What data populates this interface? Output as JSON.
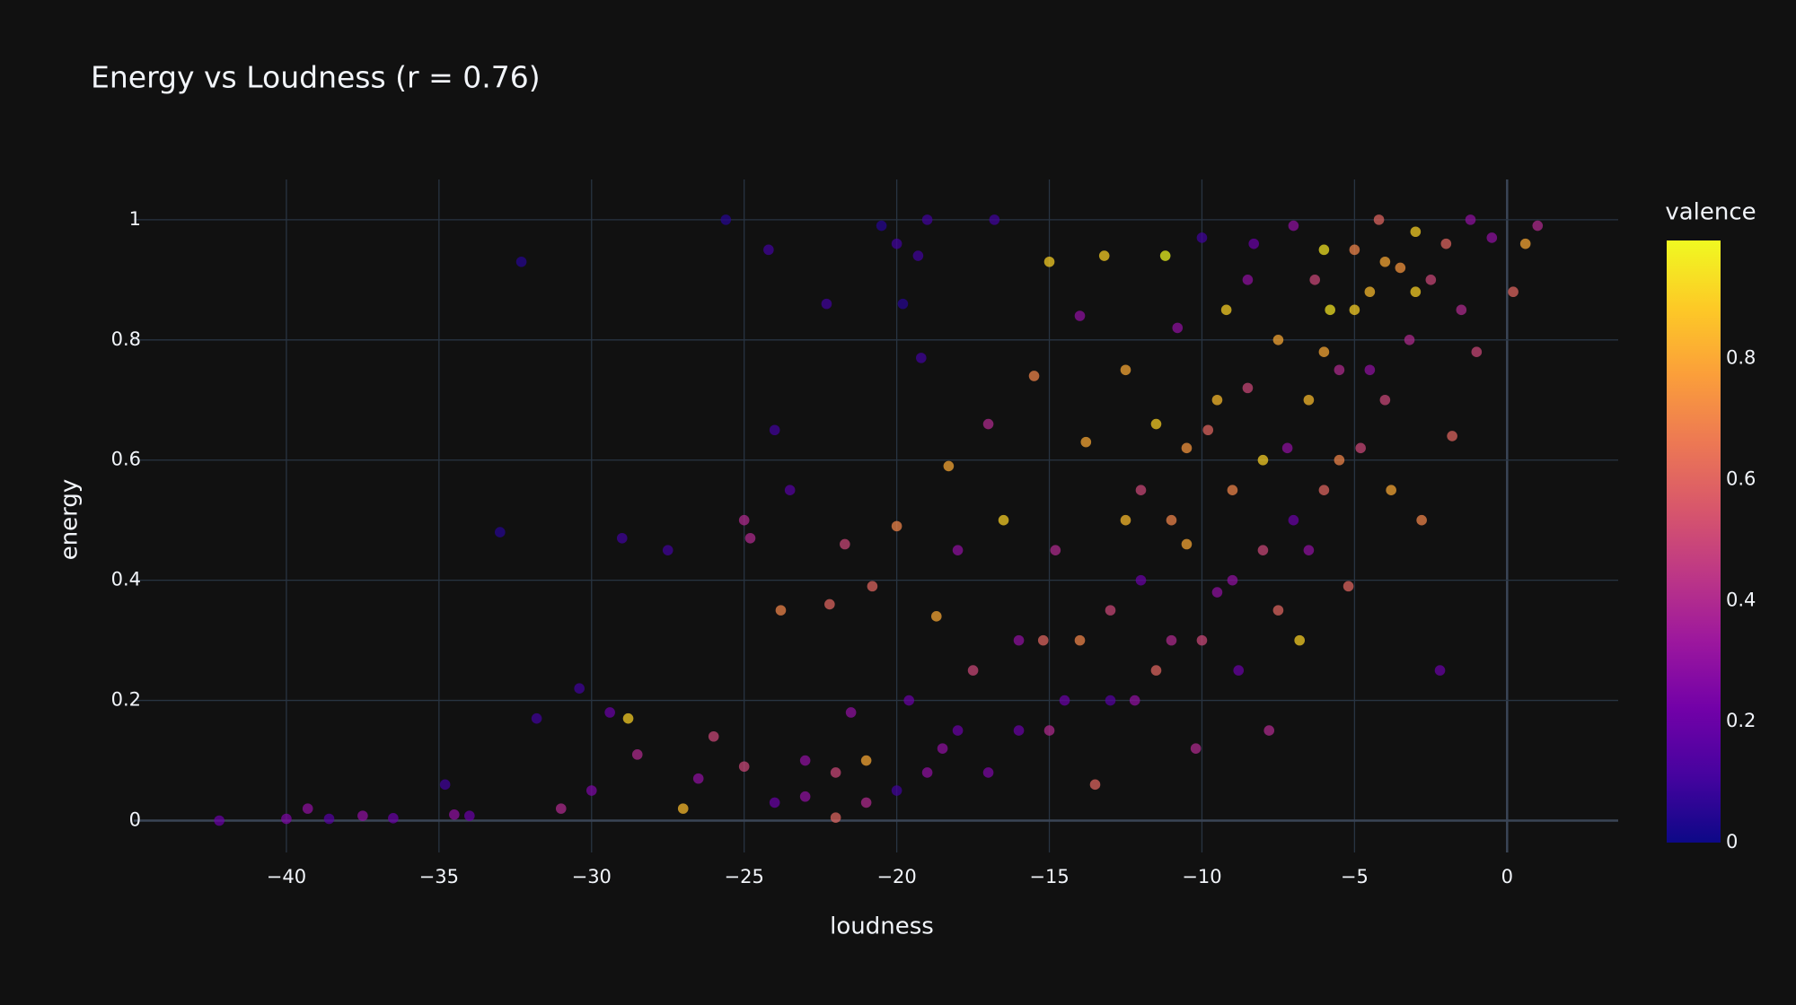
{
  "chart_data": {
    "type": "scatter",
    "title": "Energy vs Loudness (r = 0.76)",
    "x_label": "loudness",
    "y_label": "energy",
    "colorbar_title": "valence",
    "xlim": [
      -45,
      3.64
    ],
    "ylim": [
      -0.053,
      1.067
    ],
    "xticks": [
      {
        "value": -40,
        "label": "−40"
      },
      {
        "value": -35,
        "label": "−35"
      },
      {
        "value": -30,
        "label": "−30"
      },
      {
        "value": -25,
        "label": "−25"
      },
      {
        "value": -20,
        "label": "−20"
      },
      {
        "value": -15,
        "label": "−15"
      },
      {
        "value": -10,
        "label": "−10"
      },
      {
        "value": -5,
        "label": "−5"
      },
      0
    ],
    "yticks": [
      0,
      0.2,
      0.4,
      0.6,
      0.8,
      1
    ],
    "clim": [
      0,
      0.995
    ],
    "cticks": [
      0,
      0.2,
      0.4,
      0.6,
      0.8
    ],
    "colorscale": [
      "#0d0887",
      "#46039f",
      "#7201a8",
      "#9c179e",
      "#bd3786",
      "#d8576b",
      "#ed7953",
      "#fb9f3a",
      "#fdca26",
      "#f0f921"
    ],
    "grid": true,
    "x": [
      -42.2,
      -40,
      -39.3,
      -38.6,
      -37.5,
      -36.5,
      -34.8,
      -34.5,
      -34,
      -33,
      -32.3,
      -31.8,
      -31,
      -30.4,
      -30,
      -29.4,
      -29,
      -28.8,
      -28.5,
      -27.5,
      -27,
      -26.5,
      -26,
      -25.6,
      -25,
      -25,
      -24.8,
      -24.2,
      -24,
      -23.8,
      -23.5,
      -23,
      -22.3,
      -22.2,
      -22,
      -21.7,
      -21.5,
      -21,
      -20.8,
      -20.5,
      -20,
      -20,
      -19.8,
      -19.6,
      -19.3,
      -19.2,
      -19,
      -18.7,
      -18.5,
      -18.3,
      -18,
      -17.5,
      -17,
      -16.8,
      -16.5,
      -16,
      -15.5,
      -15.2,
      -15,
      -14.8,
      -14.5,
      -14,
      -13.8,
      -13.5,
      -13.2,
      -13,
      -12.5,
      -12.2,
      -12,
      -11.5,
      -11.2,
      -11,
      -10.8,
      -10.5,
      -10.2,
      -10,
      -9.8,
      -9.5,
      -9.2,
      -9,
      -8.8,
      -8.5,
      -8.3,
      -8,
      -7.8,
      -7.5,
      -7.2,
      -7,
      -6.8,
      -6.5,
      -6.3,
      -6,
      -5.8,
      -5.5,
      -5.2,
      -5,
      -4.8,
      -4.5,
      -4.2,
      -4,
      -3.8,
      -3.5,
      -3.2,
      -3,
      -2.8,
      -2.5,
      -2.2,
      -2,
      -1.8,
      -1.5,
      -1.2,
      -1,
      -0.5,
      0.2,
      0.6,
      1,
      -9,
      -8,
      -7,
      -6,
      -5,
      -4.5,
      -11,
      -12,
      -10,
      -9.5,
      -8.5,
      -7.5,
      -13,
      -14,
      -15,
      -16,
      -17,
      -18,
      -19,
      -20,
      -21,
      -22,
      -23,
      -24,
      -6,
      -3,
      -4,
      -5.5,
      -6.5,
      -11.5,
      -10.5,
      -12.5
    ],
    "y": [
      0.0,
      0.003,
      0.02,
      0.003,
      0.008,
      0.004,
      0.06,
      0.01,
      0.008,
      0.48,
      0.93,
      0.17,
      0.02,
      0.22,
      0.05,
      0.18,
      0.47,
      0.17,
      0.11,
      0.45,
      0.02,
      0.07,
      0.14,
      1.0,
      0.09,
      0.5,
      0.47,
      0.95,
      0.65,
      0.35,
      0.55,
      0.04,
      0.86,
      0.36,
      0.005,
      0.46,
      0.18,
      0.1,
      0.39,
      0.99,
      0.96,
      0.49,
      0.86,
      0.2,
      0.94,
      0.77,
      1.0,
      0.34,
      0.12,
      0.59,
      0.45,
      0.25,
      0.66,
      1.0,
      0.5,
      0.15,
      0.74,
      0.3,
      0.93,
      0.45,
      0.2,
      0.84,
      0.63,
      0.06,
      0.94,
      0.35,
      0.75,
      0.2,
      0.55,
      0.66,
      0.94,
      0.3,
      0.82,
      0.46,
      0.12,
      0.97,
      0.65,
      0.38,
      0.85,
      0.55,
      0.25,
      0.72,
      0.96,
      0.45,
      0.15,
      0.8,
      0.62,
      0.99,
      0.3,
      0.7,
      0.9,
      0.55,
      0.85,
      0.75,
      0.39,
      0.95,
      0.62,
      0.88,
      1.0,
      0.7,
      0.55,
      0.92,
      0.8,
      0.98,
      0.5,
      0.9,
      0.25,
      0.96,
      0.64,
      0.85,
      1.0,
      0.78,
      0.97,
      0.88,
      0.96,
      0.99,
      0.4,
      0.6,
      0.5,
      0.78,
      0.85,
      0.75,
      0.5,
      0.4,
      0.3,
      0.7,
      0.9,
      0.35,
      0.2,
      0.3,
      0.15,
      0.3,
      0.08,
      0.15,
      0.08,
      0.05,
      0.03,
      0.08,
      0.1,
      0.03,
      0.95,
      0.88,
      0.93,
      0.6,
      0.45,
      0.25,
      0.62,
      0.5
    ],
    "valence": [
      0.2,
      0.25,
      0.3,
      0.15,
      0.3,
      0.2,
      0.1,
      0.3,
      0.2,
      0.05,
      0.05,
      0.1,
      0.4,
      0.1,
      0.25,
      0.2,
      0.1,
      0.9,
      0.4,
      0.1,
      0.85,
      0.3,
      0.5,
      0.05,
      0.5,
      0.4,
      0.4,
      0.1,
      0.1,
      0.7,
      0.15,
      0.3,
      0.1,
      0.6,
      0.6,
      0.5,
      0.3,
      0.8,
      0.6,
      0.05,
      0.1,
      0.7,
      0.05,
      0.2,
      0.1,
      0.1,
      0.1,
      0.8,
      0.3,
      0.8,
      0.3,
      0.5,
      0.4,
      0.1,
      0.9,
      0.2,
      0.7,
      0.6,
      0.9,
      0.4,
      0.2,
      0.3,
      0.8,
      0.6,
      0.9,
      0.5,
      0.8,
      0.3,
      0.5,
      0.9,
      1.0,
      0.4,
      0.3,
      0.8,
      0.4,
      0.1,
      0.6,
      0.3,
      0.9,
      0.7,
      0.2,
      0.5,
      0.2,
      0.5,
      0.4,
      0.8,
      0.3,
      0.3,
      0.9,
      0.85,
      0.5,
      0.6,
      0.95,
      0.4,
      0.6,
      0.7,
      0.5,
      0.85,
      0.6,
      0.5,
      0.8,
      0.75,
      0.4,
      0.9,
      0.7,
      0.5,
      0.2,
      0.6,
      0.6,
      0.4,
      0.3,
      0.5,
      0.3,
      0.6,
      0.8,
      0.4,
      0.3,
      0.9,
      0.2,
      0.8,
      0.9,
      0.3,
      0.7,
      0.2,
      0.5,
      0.85,
      0.3,
      0.6,
      0.15,
      0.7,
      0.4,
      0.3,
      0.25,
      0.2,
      0.3,
      0.1,
      0.4,
      0.5,
      0.3,
      0.2,
      0.95,
      0.9,
      0.8,
      0.7,
      0.3,
      0.6,
      0.75,
      0.85
    ]
  }
}
